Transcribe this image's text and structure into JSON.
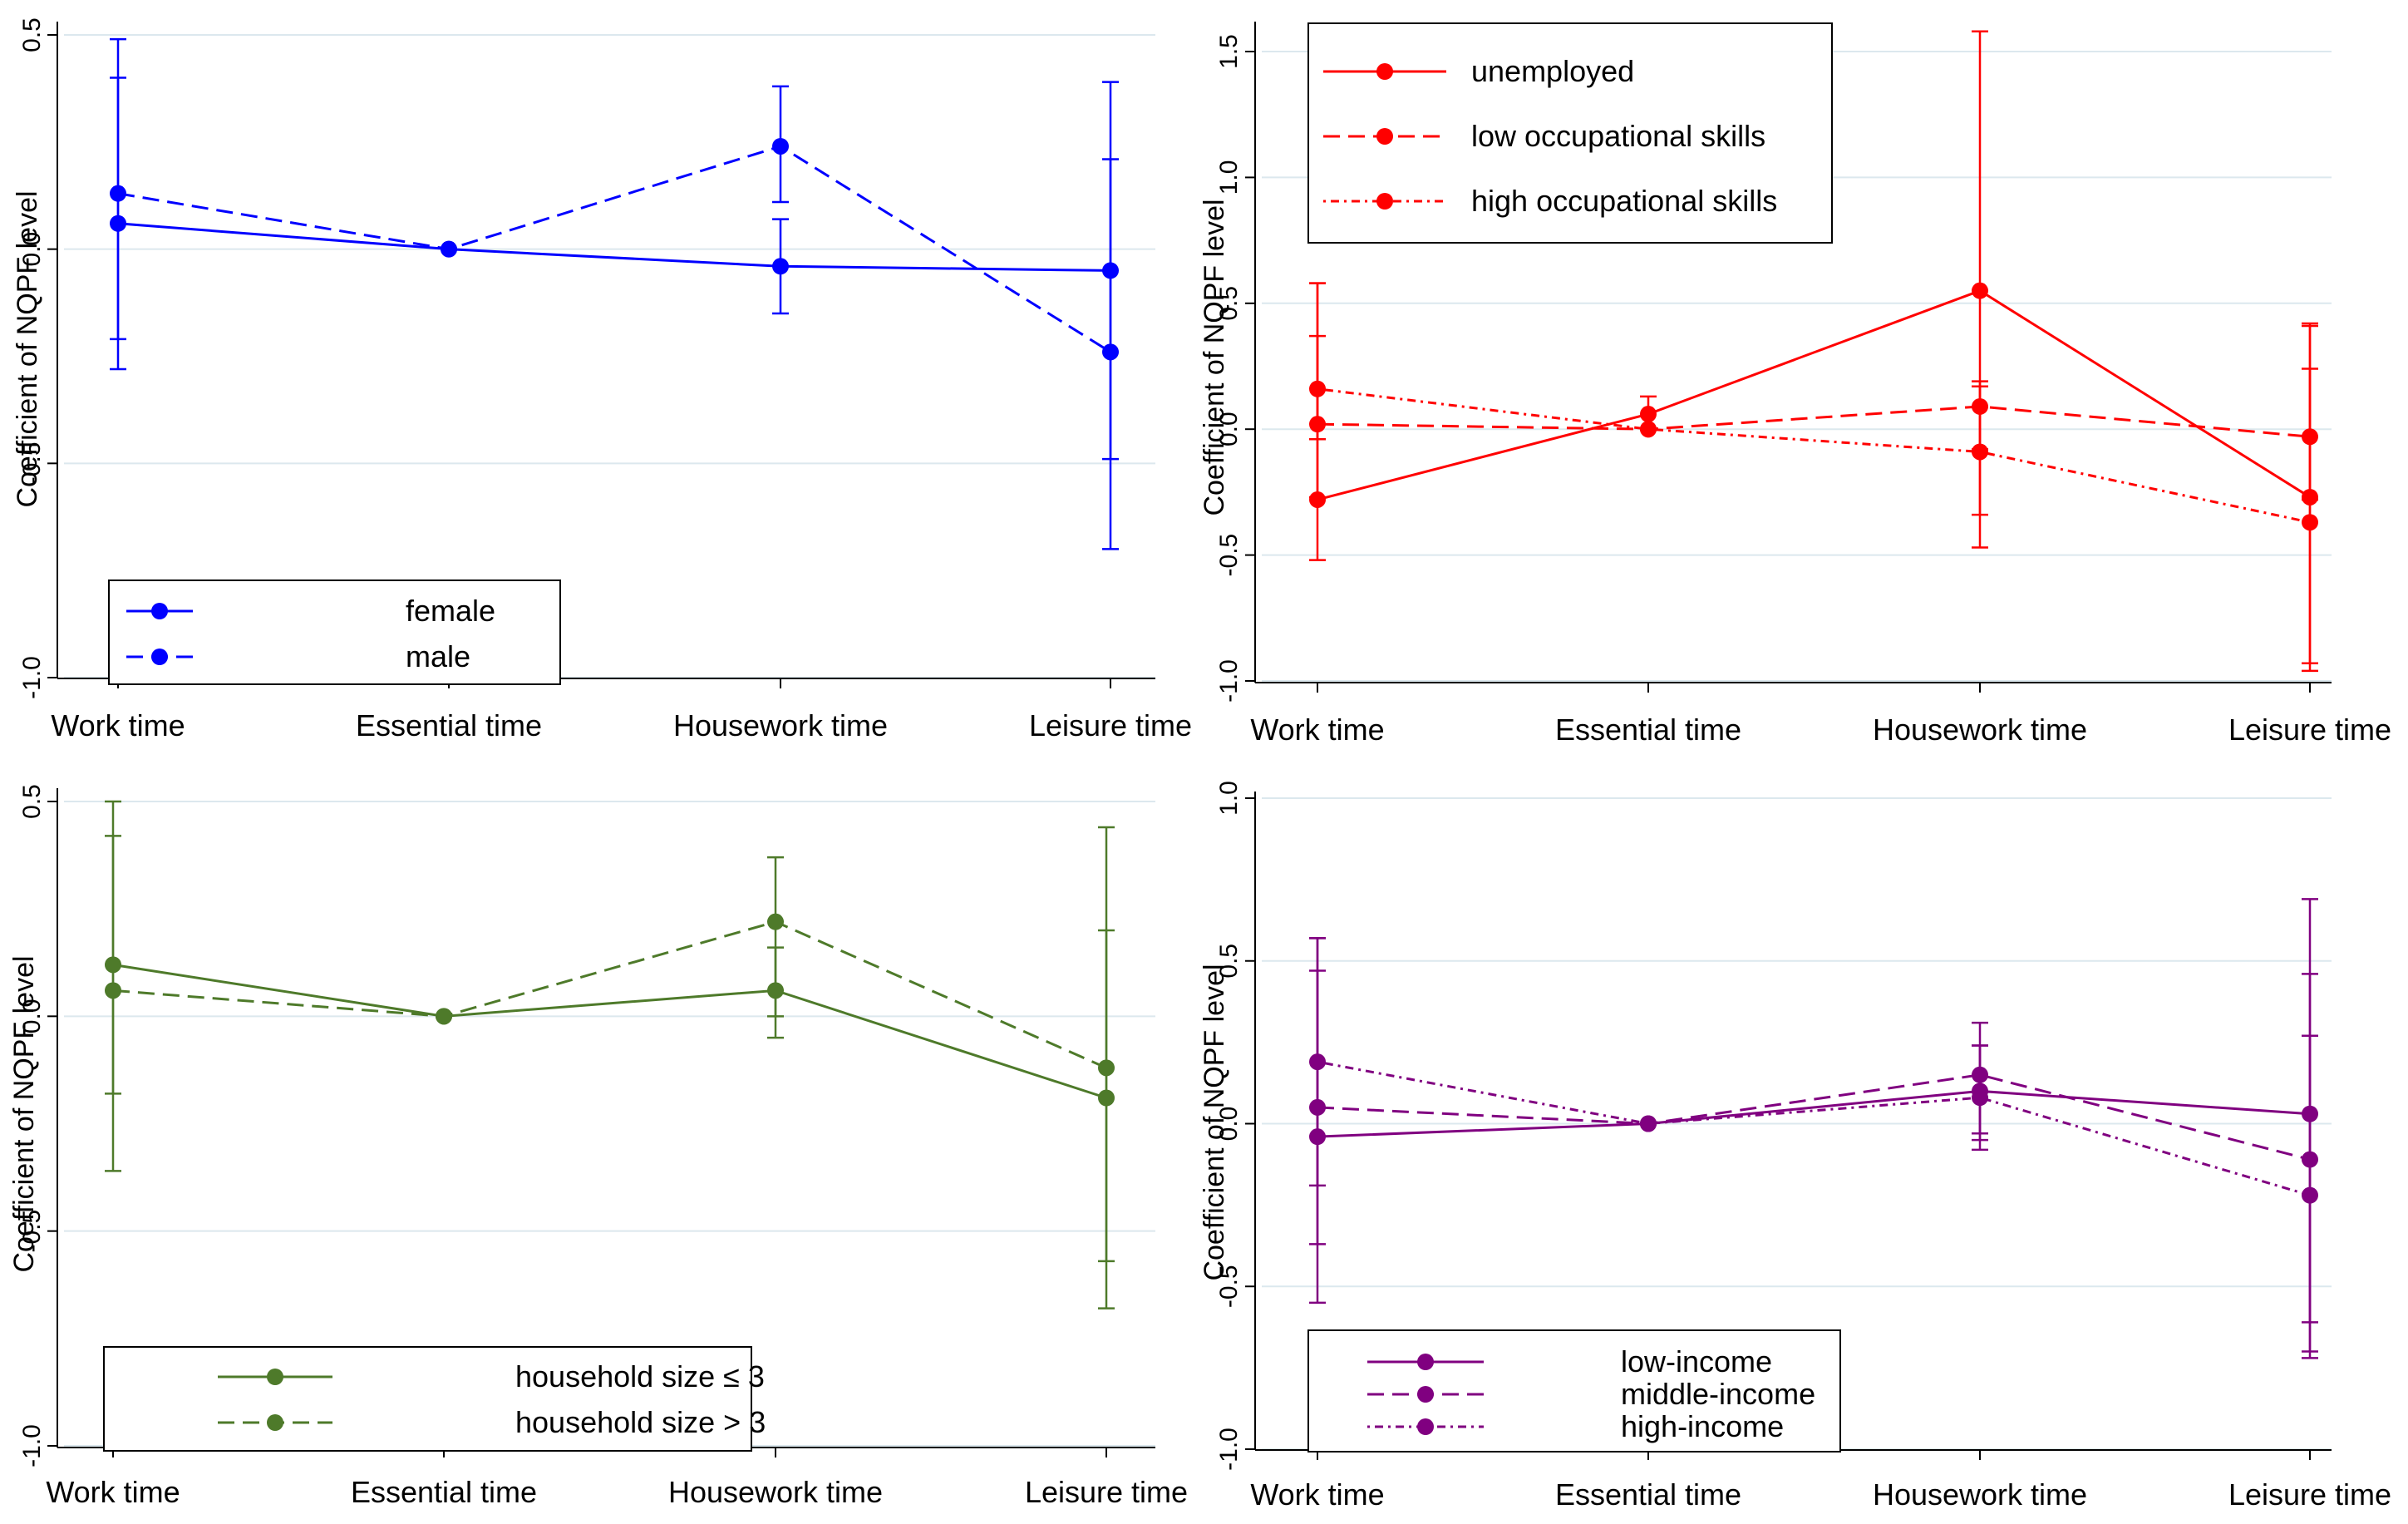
{
  "chart_data": [
    {
      "type": "line",
      "ylabel": "Coefficient of NQPF level",
      "categories": [
        "Work time",
        "Essential time",
        "Housework time",
        "Leisure time"
      ],
      "ylim": [
        -1.0,
        0.5
      ],
      "yticks": [
        0.5,
        0.0,
        -0.5,
        -1.0
      ],
      "ytick_labels": [
        "0.5",
        "0.0",
        "-0.5",
        "-1.0"
      ],
      "legend_position": "bottom-left",
      "series": [
        {
          "name": "female",
          "color": "#0000ff",
          "dash": "solid",
          "values": [
            0.06,
            0.0,
            -0.04,
            -0.05
          ],
          "ci_low": [
            -0.21,
            0.0,
            -0.15,
            -0.49
          ],
          "ci_high": [
            0.4,
            0.0,
            0.07,
            0.39
          ]
        },
        {
          "name": "male",
          "color": "#0000ff",
          "dash": "dashed",
          "values": [
            0.13,
            0.0,
            0.24,
            -0.24
          ],
          "ci_low": [
            -0.28,
            0.0,
            0.11,
            -0.7
          ],
          "ci_high": [
            0.49,
            0.0,
            0.38,
            0.21
          ]
        }
      ]
    },
    {
      "type": "line",
      "ylabel": "Coefficient of NQPF level",
      "categories": [
        "Work time",
        "Essential time",
        "Housework time",
        "Leisure time"
      ],
      "ylim": [
        -1.0,
        1.5
      ],
      "yticks": [
        1.5,
        1.0,
        0.5,
        0.0,
        -0.5,
        -1.0
      ],
      "ytick_labels": [
        "1.5",
        "1.0",
        "0.5",
        "0.0",
        "-0.5",
        "-1.0"
      ],
      "legend_position": "top-left",
      "series": [
        {
          "name": "unemployed",
          "color": "#ff0000",
          "dash": "solid",
          "values": [
            -0.28,
            0.06,
            0.55,
            -0.27
          ],
          "ci_low": [
            -0.52,
            0.0,
            -0.47,
            -0.96
          ],
          "ci_high": [
            0.58,
            0.13,
            1.58,
            0.42
          ]
        },
        {
          "name": "low occupational skills",
          "color": "#ff0000",
          "dash": "dashed",
          "values": [
            0.02,
            0.0,
            0.09,
            -0.03
          ],
          "ci_low": [
            -0.27,
            0.0,
            -0.08,
            -0.28
          ],
          "ci_high": [
            0.37,
            0.0,
            0.19,
            0.24
          ]
        },
        {
          "name": "high occupational skills",
          "color": "#ff0000",
          "dash": "dashdot",
          "values": [
            0.16,
            0.0,
            -0.09,
            -0.37
          ],
          "ci_low": [
            -0.04,
            0.0,
            -0.34,
            -0.93
          ],
          "ci_high": [
            0.58,
            0.0,
            0.17,
            0.41
          ]
        }
      ]
    },
    {
      "type": "line",
      "ylabel": "Coefficient of NQPF level",
      "categories": [
        "Work time",
        "Essential time",
        "Housework time",
        "Leisure time"
      ],
      "ylim": [
        -1.0,
        0.5
      ],
      "yticks": [
        0.5,
        0.0,
        -0.5,
        -1.0
      ],
      "ytick_labels": [
        "0.5",
        "0.0",
        "-0.5",
        "-1.0"
      ],
      "legend_position": "bottom-left",
      "series": [
        {
          "name": "household size ≤ 3",
          "color": "#4e7a2a",
          "dash": "solid",
          "values": [
            0.12,
            0.0,
            0.06,
            -0.19
          ],
          "ci_low": [
            -0.18,
            0.0,
            -0.05,
            -0.68
          ],
          "ci_high": [
            0.42,
            0.0,
            0.16,
            0.2
          ]
        },
        {
          "name": "household size > 3",
          "color": "#4e7a2a",
          "dash": "dashed",
          "values": [
            0.06,
            0.0,
            0.22,
            -0.12
          ],
          "ci_low": [
            -0.36,
            0.0,
            0.0,
            -0.57
          ],
          "ci_high": [
            0.5,
            0.0,
            0.37,
            0.44
          ]
        }
      ]
    },
    {
      "type": "line",
      "ylabel": "Coefficient of NQPF level",
      "categories": [
        "Work time",
        "Essential time",
        "Housework time",
        "Leisure time"
      ],
      "ylim": [
        -1.0,
        1.0
      ],
      "yticks": [
        1.0,
        0.5,
        0.0,
        -0.5,
        -1.0
      ],
      "ytick_labels": [
        "1.0",
        "0.5",
        "0.0",
        "-0.5",
        "-1.0"
      ],
      "legend_position": "bottom-left",
      "series": [
        {
          "name": "low-income",
          "color": "#800080",
          "dash": "solid",
          "values": [
            -0.04,
            0.0,
            0.1,
            0.03
          ],
          "ci_low": [
            -0.55,
            0.0,
            -0.05,
            -0.61
          ],
          "ci_high": [
            0.47,
            0.0,
            0.24,
            0.46
          ]
        },
        {
          "name": "middle-income",
          "color": "#800080",
          "dash": "dashed",
          "values": [
            0.05,
            0.0,
            0.15,
            -0.11
          ],
          "ci_low": [
            -0.19,
            0.0,
            -0.03,
            -0.72
          ],
          "ci_high": [
            0.57,
            0.0,
            0.31,
            0.69
          ]
        },
        {
          "name": "high-income",
          "color": "#800080",
          "dash": "dashdot",
          "values": [
            0.19,
            0.0,
            0.08,
            -0.22
          ],
          "ci_low": [
            -0.37,
            0.0,
            -0.08,
            -0.7
          ],
          "ci_high": [
            0.57,
            0.0,
            0.24,
            0.27
          ]
        }
      ]
    }
  ]
}
